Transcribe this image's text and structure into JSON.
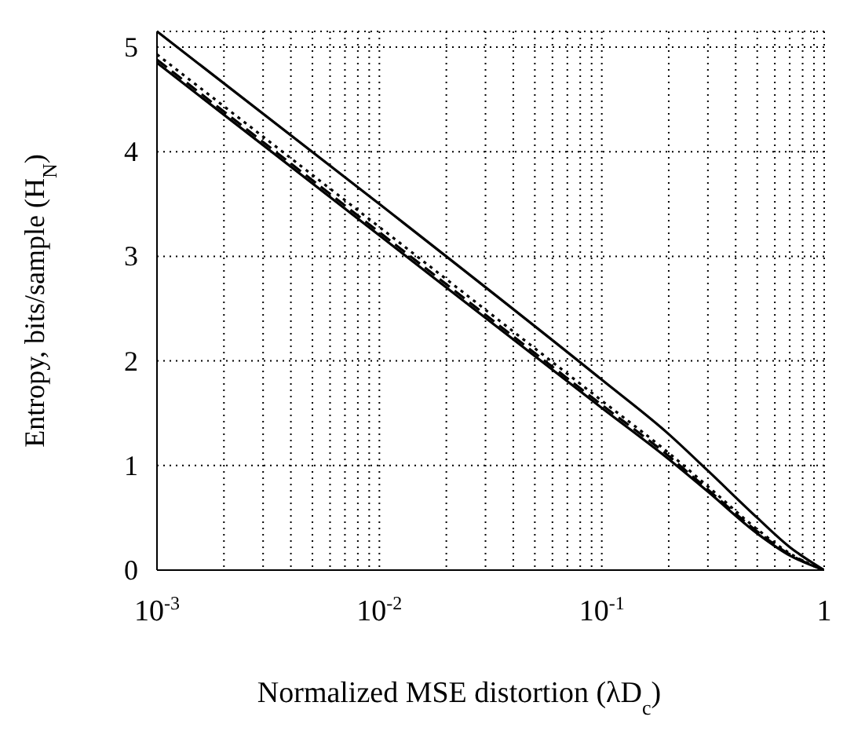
{
  "chart_data": {
    "type": "line",
    "xlabel": "Normalized MSE distortion (λD$_{c}$)",
    "ylabel": "Entropy, bits/sample (H$_{N}$)",
    "x": [
      0.001,
      0.01,
      0.1,
      0.2,
      0.3,
      0.5,
      0.7,
      1
    ],
    "series": [
      {
        "color": "#000000",
        "line_style": "solid",
        "values": [
          5.15,
          3.5,
          1.82,
          1.3,
          0.95,
          0.5,
          0.22,
          0
        ]
      },
      {
        "color": "#000000",
        "line_style": "dotted",
        "values": [
          4.93,
          3.28,
          1.62,
          1.12,
          0.8,
          0.39,
          0.16,
          0
        ]
      },
      {
        "color": "#000000",
        "line_style": "dashed",
        "values": [
          4.88,
          3.23,
          1.58,
          1.09,
          0.77,
          0.37,
          0.15,
          0
        ]
      },
      {
        "color": "#000000",
        "line_style": "solid",
        "values": [
          4.85,
          3.2,
          1.55,
          1.06,
          0.75,
          0.35,
          0.14,
          0
        ]
      }
    ],
    "log": "x",
    "xlim": [
      0.001,
      1
    ],
    "ylim": [
      0,
      5.15
    ],
    "xticks": [
      {
        "value": 0.001,
        "label": "10$^{-3}$"
      },
      {
        "value": 0.002,
        "label": null
      },
      {
        "value": 0.003,
        "label": null
      },
      {
        "value": 0.004,
        "label": null
      },
      {
        "value": 0.005,
        "label": null
      },
      {
        "value": 0.006,
        "label": null
      },
      {
        "value": 0.007,
        "label": null
      },
      {
        "value": 0.008,
        "label": null
      },
      {
        "value": 0.009,
        "label": null
      },
      {
        "value": 0.01,
        "label": "10$^{-2}$"
      },
      {
        "value": 0.02,
        "label": null
      },
      {
        "value": 0.03,
        "label": null
      },
      {
        "value": 0.04,
        "label": null
      },
      {
        "value": 0.05,
        "label": null
      },
      {
        "value": 0.06,
        "label": null
      },
      {
        "value": 0.07,
        "label": null
      },
      {
        "value": 0.08,
        "label": null
      },
      {
        "value": 0.09,
        "label": null
      },
      {
        "value": 0.1,
        "label": "10$^{-1}$"
      },
      {
        "value": 0.2,
        "label": null
      },
      {
        "value": 0.3,
        "label": null
      },
      {
        "value": 0.4,
        "label": null
      },
      {
        "value": 0.5,
        "label": null
      },
      {
        "value": 0.6,
        "label": null
      },
      {
        "value": 0.7,
        "label": null
      },
      {
        "value": 0.8,
        "label": null
      },
      {
        "value": 0.9,
        "label": null
      },
      1
    ],
    "yticks": [
      0,
      1,
      2,
      3,
      4,
      5
    ],
    "grid": true,
    "marker": "none"
  }
}
